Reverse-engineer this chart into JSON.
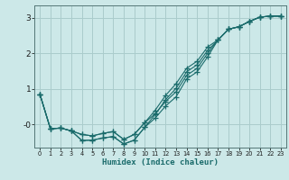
{
  "xlabel": "Humidex (Indice chaleur)",
  "bg_color": "#cce8e8",
  "grid_color": "#aacccc",
  "line_color": "#1a6b6b",
  "xlim": [
    -0.5,
    23.5
  ],
  "ylim": [
    -0.65,
    3.35
  ],
  "line1_x": [
    0,
    1,
    2,
    3,
    4,
    5,
    6,
    7,
    8,
    9,
    10,
    11,
    12,
    13,
    14,
    15,
    16,
    17,
    18,
    19,
    20,
    21,
    22,
    23
  ],
  "line1_y": [
    0.85,
    -0.12,
    -0.1,
    -0.18,
    -0.28,
    -0.32,
    -0.25,
    -0.2,
    -0.42,
    -0.28,
    0.05,
    0.3,
    0.65,
    0.92,
    1.38,
    1.58,
    2.0,
    2.38,
    2.68,
    2.75,
    2.9,
    3.02,
    3.05,
    3.05
  ],
  "line2_x": [
    0,
    1,
    2,
    3,
    4,
    5,
    6,
    7,
    8,
    9,
    10,
    11,
    12,
    13,
    14,
    15,
    16,
    17,
    18,
    19,
    20,
    21,
    22,
    23
  ],
  "line2_y": [
    0.85,
    -0.12,
    -0.1,
    -0.18,
    -0.28,
    -0.32,
    -0.25,
    -0.2,
    -0.42,
    -0.28,
    0.05,
    0.4,
    0.82,
    1.15,
    1.58,
    1.78,
    2.18,
    2.38,
    2.68,
    2.75,
    2.9,
    3.02,
    3.05,
    3.05
  ],
  "line3_x": [
    0,
    1,
    2,
    3,
    4,
    5,
    6,
    7,
    8,
    9,
    10,
    11,
    12,
    13,
    14,
    15,
    16,
    17,
    18,
    19,
    20,
    21,
    22,
    23
  ],
  "line3_y": [
    0.85,
    -0.12,
    -0.1,
    -0.18,
    -0.45,
    -0.44,
    -0.38,
    -0.34,
    -0.55,
    -0.44,
    -0.08,
    0.18,
    0.52,
    0.78,
    1.28,
    1.48,
    1.9,
    2.38,
    2.68,
    2.75,
    2.9,
    3.02,
    3.05,
    3.05
  ],
  "line4_x": [
    0,
    1,
    2,
    3,
    4,
    5,
    6,
    7,
    8,
    9,
    10,
    11,
    12,
    13,
    14,
    15,
    16,
    17,
    18,
    19,
    20,
    21,
    22,
    23
  ],
  "line4_y": [
    0.85,
    -0.12,
    -0.1,
    -0.18,
    -0.45,
    -0.44,
    -0.38,
    -0.34,
    -0.55,
    -0.44,
    -0.08,
    0.28,
    0.7,
    1.02,
    1.48,
    1.68,
    2.08,
    2.38,
    2.68,
    2.75,
    2.9,
    3.02,
    3.05,
    3.05
  ]
}
